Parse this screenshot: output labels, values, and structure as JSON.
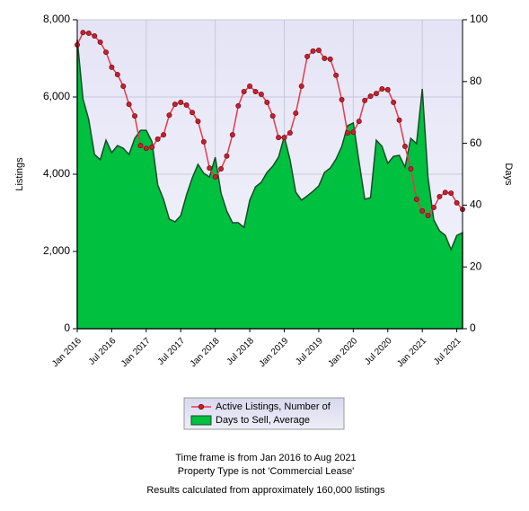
{
  "chart_data": {
    "type": "line-area",
    "y_label": "Listings",
    "y2_label": "Days",
    "categories": [
      "Jan 2016",
      null,
      null,
      null,
      null,
      null,
      "Jul 2016",
      null,
      null,
      null,
      null,
      null,
      "Jan 2017",
      null,
      null,
      null,
      null,
      null,
      "Jul 2017",
      null,
      null,
      null,
      null,
      null,
      "Jan 2018",
      null,
      null,
      null,
      null,
      null,
      "Jul 2018",
      null,
      null,
      null,
      null,
      null,
      "Jan 2019",
      null,
      null,
      null,
      null,
      null,
      "Jul 2019",
      null,
      null,
      null,
      null,
      null,
      "Jan 2020",
      null,
      null,
      null,
      null,
      null,
      "Jul 2020",
      null,
      null,
      null,
      null,
      null,
      "Jan 2021",
      null,
      null,
      null,
      null,
      null,
      "Jul 2021",
      null
    ],
    "ylim": [
      0,
      8000
    ],
    "yticks": [
      0,
      {
        "value": 2000,
        "label": "2,000"
      },
      {
        "value": 4000,
        "label": "4,000"
      },
      {
        "value": 6000,
        "label": "6,000"
      },
      {
        "value": 8000,
        "label": "8,000"
      }
    ],
    "y2lim": [
      0,
      100
    ],
    "y2ticks": [
      0,
      20,
      40,
      60,
      80,
      100
    ],
    "grid": true,
    "series": [
      {
        "name": "Active Listings, Number of",
        "kind": "line",
        "color": "#e8394a",
        "values": [
          7350,
          7670,
          7650,
          7580,
          7420,
          7160,
          6770,
          6580,
          6280,
          5810,
          5510,
          4740,
          4670,
          4700,
          4910,
          5020,
          5530,
          5810,
          5860,
          5790,
          5600,
          5370,
          4840,
          4160,
          3930,
          4140,
          4470,
          5020,
          5770,
          6140,
          6280,
          6140,
          6070,
          5860,
          5510,
          4950,
          4950,
          5070,
          5580,
          6280,
          7050,
          7190,
          7210,
          7000,
          6980,
          6560,
          5930,
          5070,
          5090,
          5370,
          5910,
          6020,
          6090,
          6210,
          6190,
          5860,
          5400,
          4720,
          4140,
          3350,
          3050,
          2930,
          3140,
          3420,
          3530,
          3510,
          3260,
          3090
        ]
      },
      {
        "name": "Days to Sell, Average",
        "kind": "area",
        "axis": "y2",
        "color": "#00c040",
        "values": [
          93.6,
          74.4,
          67.7,
          56.4,
          54.7,
          61,
          57,
          59.3,
          58.4,
          56.4,
          61.6,
          64.2,
          64.2,
          60.5,
          46.5,
          41.9,
          35.5,
          34.6,
          36.6,
          43.3,
          48.8,
          53.2,
          50.3,
          49.1,
          55.5,
          43.9,
          38.1,
          34.3,
          34.3,
          32.8,
          41.6,
          45.9,
          47.4,
          50.6,
          52.6,
          55.5,
          62.2,
          54.7,
          44.2,
          41.6,
          43,
          44.5,
          46.2,
          50.6,
          52,
          54.9,
          59,
          65.7,
          66.6,
          54.1,
          41.9,
          42.4,
          61,
          59,
          53.5,
          55.8,
          56.1,
          52.3,
          61.6,
          59.9,
          77.6,
          48.8,
          35.2,
          31.7,
          30.2,
          25.6,
          30.2,
          31.1
        ]
      }
    ],
    "notes": [
      "Time frame is from Jan 2016 to Aug 2021",
      "Property Type is not 'Commercial Lease'",
      "Results calculated from approximately 160,000 listings"
    ]
  }
}
